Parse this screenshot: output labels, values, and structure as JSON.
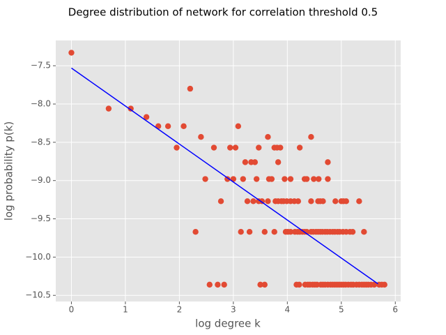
{
  "chart_data": {
    "type": "scatter",
    "title": "Degree distribution of network for correlation threshold 0.5",
    "x_label": "log degree k",
    "y_label": "log probability p(k)",
    "xlim": [
      -0.29,
      6.1
    ],
    "ylim": [
      -10.58,
      -7.17
    ],
    "xticks": [
      0,
      1,
      2,
      3,
      4,
      5,
      6
    ],
    "yticks": [
      {
        "value": -7.5,
        "label": "−7.5"
      },
      {
        "value": -8.0,
        "label": "−8.0"
      },
      {
        "value": -8.5,
        "label": "−8.5"
      },
      {
        "value": -9.0,
        "label": "−9.0"
      },
      {
        "value": -9.5,
        "label": "−9.5"
      },
      {
        "value": -10.0,
        "label": "−10.0"
      },
      {
        "value": -10.5,
        "label": "−10.5"
      }
    ],
    "grid": true,
    "series": [
      {
        "type": "scatter",
        "color": "#e24a33",
        "x": [
          0,
          0.69,
          1.1,
          1.39,
          2.2,
          1.61,
          1.79,
          2.08,
          3.09,
          2.4,
          3.64,
          4.44,
          1.95,
          2.64,
          2.94,
          3.04,
          3.47,
          3.76,
          3.81,
          3.87,
          4.23,
          3.22,
          3.33,
          3.4,
          3.83,
          4.75,
          2.48,
          2.89,
          3.0,
          3.18,
          3.43,
          3.66,
          3.71,
          3.95,
          4.06,
          4.32,
          4.36,
          4.49,
          4.58,
          4.75,
          2.77,
          3.26,
          3.37,
          3.47,
          3.53,
          3.64,
          3.78,
          3.83,
          3.89,
          3.93,
          3.99,
          4.06,
          4.13,
          4.2,
          4.44,
          4.57,
          4.61,
          4.66,
          4.89,
          5.0,
          5.04,
          5.09,
          5.33,
          2.3,
          3.14,
          3.3,
          3.58,
          3.76,
          3.97,
          4.01,
          4.06,
          4.14,
          4.19,
          4.23,
          4.28,
          4.32,
          4.36,
          4.44,
          4.48,
          4.53,
          4.57,
          4.61,
          4.65,
          4.7,
          4.74,
          4.79,
          4.84,
          4.88,
          4.93,
          4.97,
          5.03,
          5.09,
          5.16,
          5.21,
          5.42,
          2.56,
          2.71,
          2.83,
          3.5,
          3.58,
          4.17,
          4.22,
          4.33,
          4.38,
          4.42,
          4.47,
          4.51,
          4.55,
          4.62,
          4.66,
          4.7,
          4.75,
          4.8,
          4.84,
          4.88,
          4.92,
          4.96,
          5.0,
          5.04,
          5.08,
          5.13,
          5.18,
          5.22,
          5.28,
          5.33,
          5.38,
          5.42,
          5.46,
          5.5,
          5.55,
          5.61,
          5.7,
          5.75,
          5.8
        ],
        "values": [
          -7.33,
          -8.06,
          -8.06,
          -8.17,
          -7.8,
          -8.29,
          -8.29,
          -8.29,
          -8.29,
          -8.43,
          -8.43,
          -8.43,
          -8.57,
          -8.57,
          -8.57,
          -8.57,
          -8.57,
          -8.57,
          -8.57,
          -8.57,
          -8.57,
          -8.76,
          -8.76,
          -8.76,
          -8.76,
          -8.76,
          -8.98,
          -8.98,
          -8.98,
          -8.98,
          -8.98,
          -8.98,
          -8.98,
          -8.98,
          -8.98,
          -8.98,
          -8.98,
          -8.98,
          -8.98,
          -8.98,
          -9.27,
          -9.27,
          -9.27,
          -9.27,
          -9.27,
          -9.27,
          -9.27,
          -9.27,
          -9.27,
          -9.27,
          -9.27,
          -9.27,
          -9.27,
          -9.27,
          -9.27,
          -9.27,
          -9.27,
          -9.27,
          -9.27,
          -9.27,
          -9.27,
          -9.27,
          -9.27,
          -9.67,
          -9.67,
          -9.67,
          -9.67,
          -9.67,
          -9.67,
          -9.67,
          -9.67,
          -9.67,
          -9.67,
          -9.67,
          -9.67,
          -9.67,
          -9.67,
          -9.67,
          -9.67,
          -9.67,
          -9.67,
          -9.67,
          -9.67,
          -9.67,
          -9.67,
          -9.67,
          -9.67,
          -9.67,
          -9.67,
          -9.67,
          -9.67,
          -9.67,
          -9.67,
          -9.67,
          -9.67,
          -10.36,
          -10.36,
          -10.36,
          -10.36,
          -10.36,
          -10.36,
          -10.36,
          -10.36,
          -10.36,
          -10.36,
          -10.36,
          -10.36,
          -10.36,
          -10.36,
          -10.36,
          -10.36,
          -10.36,
          -10.36,
          -10.36,
          -10.36,
          -10.36,
          -10.36,
          -10.36,
          -10.36,
          -10.36,
          -10.36,
          -10.36,
          -10.36,
          -10.36,
          -10.36,
          -10.36,
          -10.36,
          -10.36,
          -10.36,
          -10.36,
          -10.36,
          -10.36,
          -10.36,
          -10.36
        ]
      },
      {
        "type": "line",
        "color": "#0000ff",
        "x": [
          0,
          5.68
        ],
        "values": [
          -7.53,
          -10.35
        ]
      }
    ]
  }
}
